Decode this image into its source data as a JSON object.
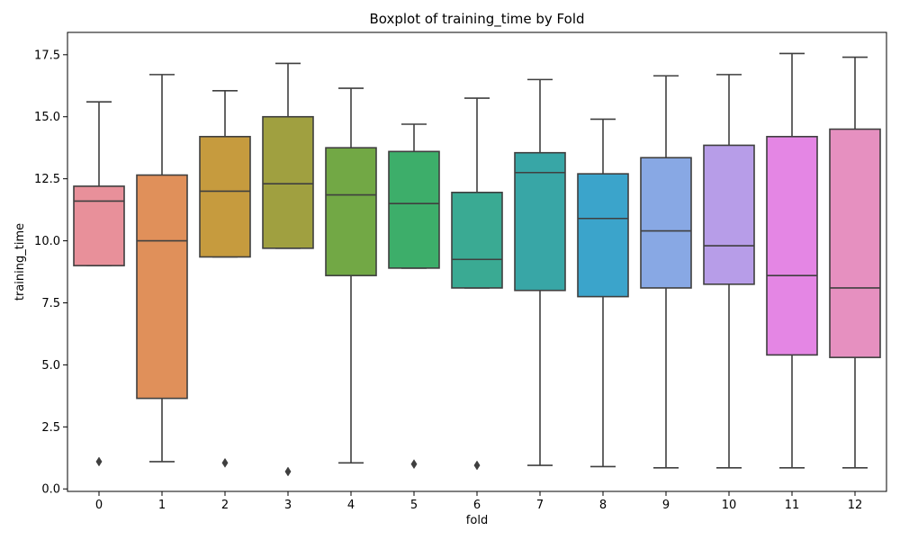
{
  "chart_data": {
    "type": "boxplot",
    "title": "Boxplot of training_time by Fold",
    "xlabel": "fold",
    "ylabel": "training_time",
    "ylim": [
      -0.1,
      18.4
    ],
    "yticks": [
      0.0,
      2.5,
      5.0,
      7.5,
      10.0,
      12.5,
      15.0,
      17.5
    ],
    "ytick_labels": [
      "0.0",
      "2.5",
      "5.0",
      "7.5",
      "10.0",
      "12.5",
      "15.0",
      "17.5"
    ],
    "categories": [
      "0",
      "1",
      "2",
      "3",
      "4",
      "5",
      "6",
      "7",
      "8",
      "9",
      "10",
      "11",
      "12"
    ],
    "boxes": [
      {
        "fold": "0",
        "whisker_low": 9.0,
        "q1": 9.0,
        "median": 11.6,
        "q3": 12.2,
        "whisker_high": 15.6,
        "outliers": [
          1.1
        ],
        "color": "#e8909a"
      },
      {
        "fold": "1",
        "whisker_low": 1.1,
        "q1": 3.65,
        "median": 10.0,
        "q3": 12.65,
        "whisker_high": 16.7,
        "outliers": [],
        "color": "#e0905a"
      },
      {
        "fold": "2",
        "whisker_low": 9.35,
        "q1": 9.35,
        "median": 12.0,
        "q3": 14.2,
        "whisker_high": 16.05,
        "outliers": [
          1.05
        ],
        "color": "#c69b3e"
      },
      {
        "fold": "3",
        "whisker_low": 9.7,
        "q1": 9.7,
        "median": 12.3,
        "q3": 15.0,
        "whisker_high": 17.15,
        "outliers": [
          0.7
        ],
        "color": "#a0a040"
      },
      {
        "fold": "4",
        "whisker_low": 1.05,
        "q1": 8.6,
        "median": 11.85,
        "q3": 13.75,
        "whisker_high": 16.15,
        "outliers": [],
        "color": "#72a845"
      },
      {
        "fold": "5",
        "whisker_low": 8.9,
        "q1": 8.9,
        "median": 11.5,
        "q3": 13.6,
        "whisker_high": 14.7,
        "outliers": [
          1.0
        ],
        "color": "#3dae6a"
      },
      {
        "fold": "6",
        "whisker_low": 8.1,
        "q1": 8.1,
        "median": 9.25,
        "q3": 11.95,
        "whisker_high": 15.75,
        "outliers": [
          0.95
        ],
        "color": "#3aaa93"
      },
      {
        "fold": "7",
        "whisker_low": 0.95,
        "q1": 8.0,
        "median": 12.75,
        "q3": 13.55,
        "whisker_high": 16.5,
        "outliers": [],
        "color": "#38a6a6"
      },
      {
        "fold": "8",
        "whisker_low": 0.9,
        "q1": 7.75,
        "median": 10.9,
        "q3": 12.7,
        "whisker_high": 14.9,
        "outliers": [],
        "color": "#3ba4cb"
      },
      {
        "fold": "9",
        "whisker_low": 0.85,
        "q1": 8.1,
        "median": 10.4,
        "q3": 13.35,
        "whisker_high": 16.65,
        "outliers": [],
        "color": "#88a8e4"
      },
      {
        "fold": "10",
        "whisker_low": 0.85,
        "q1": 8.25,
        "median": 9.8,
        "q3": 13.85,
        "whisker_high": 16.7,
        "outliers": [],
        "color": "#b79de8"
      },
      {
        "fold": "11",
        "whisker_low": 0.85,
        "q1": 5.4,
        "median": 8.6,
        "q3": 14.2,
        "whisker_high": 17.55,
        "outliers": [],
        "color": "#e486e4"
      },
      {
        "fold": "12",
        "whisker_low": 0.85,
        "q1": 5.3,
        "median": 8.1,
        "q3": 14.5,
        "whisker_high": 17.4,
        "outliers": [],
        "color": "#e690c0"
      }
    ]
  }
}
